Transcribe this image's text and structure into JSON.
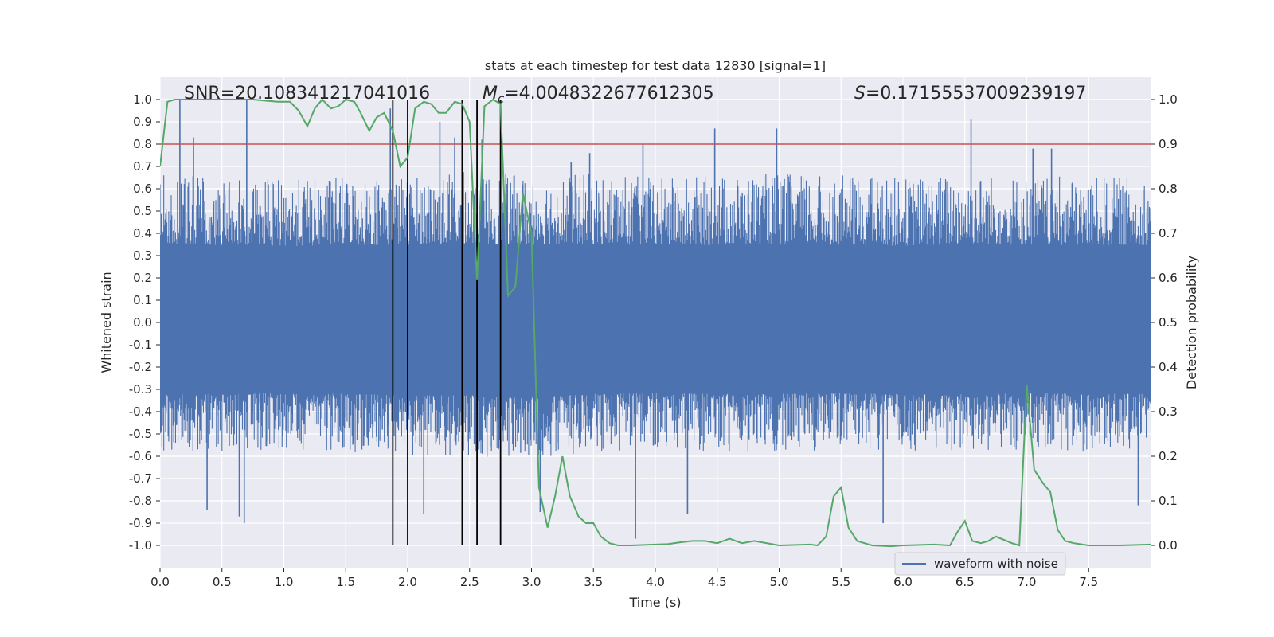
{
  "chart_data": {
    "type": "line",
    "title": "stats at each timestep for test data 12830 [signal=1]",
    "xlabel": "Time (s)",
    "ylabel_left": "Whitened strain",
    "ylabel_right": "Detection probability",
    "xlim": [
      0,
      8
    ],
    "ylim_left": [
      -1.1,
      1.1
    ],
    "ylim_right": [
      -0.05,
      1.05
    ],
    "xticks": [
      "0.0",
      "0.5",
      "1.0",
      "1.5",
      "2.0",
      "2.5",
      "3.0",
      "3.5",
      "4.0",
      "4.5",
      "5.0",
      "5.5",
      "6.0",
      "6.5",
      "7.0",
      "7.5"
    ],
    "yticks_left": [
      "1.0",
      "0.9",
      "0.8",
      "0.7",
      "0.6",
      "0.5",
      "0.4",
      "0.3",
      "0.2",
      "0.1",
      "0.0",
      "-0.1",
      "-0.2",
      "-0.3",
      "-0.4",
      "-0.5",
      "-0.6",
      "-0.7",
      "-0.8",
      "-0.9",
      "-1.0"
    ],
    "yticks_right": [
      "1.0",
      "0.9",
      "0.8",
      "0.7",
      "0.6",
      "0.5",
      "0.4",
      "0.3",
      "0.2",
      "0.1",
      "0.0"
    ],
    "annotations": {
      "snr_label": "SNR=20.108341217041016",
      "mc_symbol": "M",
      "mc_subscript": "c",
      "mc_value": "=4.0048322677612305",
      "s_symbol": "S",
      "s_value": "=0.17155537009239197"
    },
    "threshold": {
      "value": 0.9,
      "axis": "right",
      "color": "#c44e52"
    },
    "vertical_lines": [
      1.88,
      2.0,
      2.44,
      2.56,
      2.75
    ],
    "series": [
      {
        "name": "waveform with noise",
        "color": "#4c72b0",
        "axis": "left",
        "envelope": {
          "x": [
            0.0,
            0.5,
            1.0,
            1.5,
            2.0,
            2.5,
            3.0,
            3.5,
            4.0,
            4.5,
            5.0,
            5.5,
            6.0,
            6.5,
            7.0,
            7.5,
            8.0
          ],
          "upper": [
            0.68,
            0.65,
            0.64,
            0.66,
            0.66,
            0.68,
            0.66,
            0.67,
            0.65,
            0.66,
            0.67,
            0.66,
            0.65,
            0.67,
            0.66,
            0.65,
            0.66
          ],
          "lower": [
            -0.58,
            -0.58,
            -0.57,
            -0.58,
            -0.6,
            -0.6,
            -0.62,
            -0.58,
            -0.57,
            -0.58,
            -0.58,
            -0.57,
            -0.58,
            -0.58,
            -0.57,
            -0.58,
            -0.58
          ]
        },
        "peaks": [
          {
            "x": 0.16,
            "y": 1.0
          },
          {
            "x": 0.27,
            "y": 0.83
          },
          {
            "x": 0.7,
            "y": 1.0
          },
          {
            "x": 1.86,
            "y": 0.96
          },
          {
            "x": 2.26,
            "y": 0.9
          },
          {
            "x": 2.38,
            "y": 0.83
          },
          {
            "x": 2.6,
            "y": 0.82
          },
          {
            "x": 3.32,
            "y": 0.72
          },
          {
            "x": 3.47,
            "y": 0.76
          },
          {
            "x": 3.9,
            "y": 0.8
          },
          {
            "x": 4.48,
            "y": 0.87
          },
          {
            "x": 4.98,
            "y": 0.87
          },
          {
            "x": 6.55,
            "y": 0.91
          },
          {
            "x": 7.05,
            "y": 0.78
          },
          {
            "x": 7.2,
            "y": 0.78
          }
        ],
        "troughs": [
          {
            "x": 0.38,
            "y": -0.84
          },
          {
            "x": 0.64,
            "y": -0.87
          },
          {
            "x": 0.68,
            "y": -0.9
          },
          {
            "x": 2.13,
            "y": -0.86
          },
          {
            "x": 3.07,
            "y": -0.85
          },
          {
            "x": 3.84,
            "y": -0.97
          },
          {
            "x": 4.26,
            "y": -0.86
          },
          {
            "x": 5.84,
            "y": -0.9
          },
          {
            "x": 7.9,
            "y": -0.82
          }
        ]
      },
      {
        "name": "detection probability",
        "color": "#55a868",
        "axis": "right",
        "x": [
          0.0,
          0.06,
          0.12,
          0.25,
          0.5,
          0.75,
          0.95,
          1.05,
          1.12,
          1.19,
          1.25,
          1.31,
          1.38,
          1.44,
          1.5,
          1.57,
          1.62,
          1.69,
          1.75,
          1.81,
          1.88,
          1.94,
          2.0,
          2.06,
          2.13,
          2.19,
          2.25,
          2.31,
          2.38,
          2.44,
          2.5,
          2.56,
          2.62,
          2.69,
          2.75,
          2.81,
          2.87,
          2.93,
          3.0,
          3.06,
          3.13,
          3.19,
          3.25,
          3.31,
          3.38,
          3.44,
          3.5,
          3.56,
          3.63,
          3.7,
          3.8,
          4.0,
          4.1,
          4.2,
          4.3,
          4.4,
          4.5,
          4.6,
          4.7,
          4.8,
          5.0,
          5.25,
          5.31,
          5.38,
          5.44,
          5.5,
          5.56,
          5.63,
          5.75,
          5.9,
          6.0,
          6.25,
          6.38,
          6.44,
          6.5,
          6.56,
          6.63,
          6.69,
          6.75,
          6.88,
          6.94,
          7.0,
          7.06,
          7.13,
          7.19,
          7.25,
          7.31,
          7.38,
          7.5,
          7.75,
          8.0
        ],
        "values": [
          0.85,
          0.995,
          1.0,
          1.0,
          1.0,
          1.0,
          0.995,
          0.995,
          0.975,
          0.94,
          0.98,
          1.0,
          0.98,
          0.985,
          1.0,
          0.995,
          0.97,
          0.93,
          0.96,
          0.97,
          0.93,
          0.85,
          0.87,
          0.98,
          0.995,
          0.99,
          0.97,
          0.97,
          0.995,
          0.99,
          0.95,
          0.595,
          0.985,
          1.0,
          0.99,
          0.56,
          0.58,
          0.79,
          0.7,
          0.13,
          0.04,
          0.11,
          0.2,
          0.11,
          0.065,
          0.05,
          0.05,
          0.02,
          0.005,
          0.0,
          0.0,
          0.002,
          0.003,
          0.007,
          0.01,
          0.01,
          0.005,
          0.015,
          0.005,
          0.01,
          0.0,
          0.002,
          0.0,
          0.02,
          0.11,
          0.13,
          0.04,
          0.01,
          0.0,
          -0.002,
          0.0,
          0.002,
          0.0,
          0.03,
          0.055,
          0.01,
          0.005,
          0.01,
          0.02,
          0.005,
          0.0,
          0.36,
          0.17,
          0.14,
          0.12,
          0.035,
          0.01,
          0.005,
          0.0,
          0.0,
          0.002
        ]
      }
    ],
    "legend": {
      "label": "waveform with noise",
      "position": "lower-right"
    }
  }
}
